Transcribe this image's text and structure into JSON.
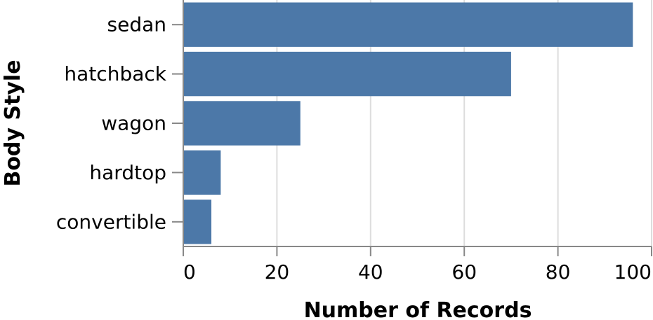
{
  "chart_data": {
    "type": "bar",
    "orientation": "horizontal",
    "categories": [
      "sedan",
      "hatchback",
      "wagon",
      "hardtop",
      "convertible"
    ],
    "values": [
      96,
      70,
      25,
      8,
      6
    ],
    "xlabel": "Number of Records",
    "ylabel": "Body Style",
    "xlim": [
      0,
      100
    ],
    "xticks": [
      0,
      20,
      40,
      60,
      80,
      100
    ],
    "grid": true,
    "legend": "none",
    "colors": {
      "bar": "#4c78a8",
      "grid": "#dddddd",
      "axis": "#888888"
    }
  }
}
